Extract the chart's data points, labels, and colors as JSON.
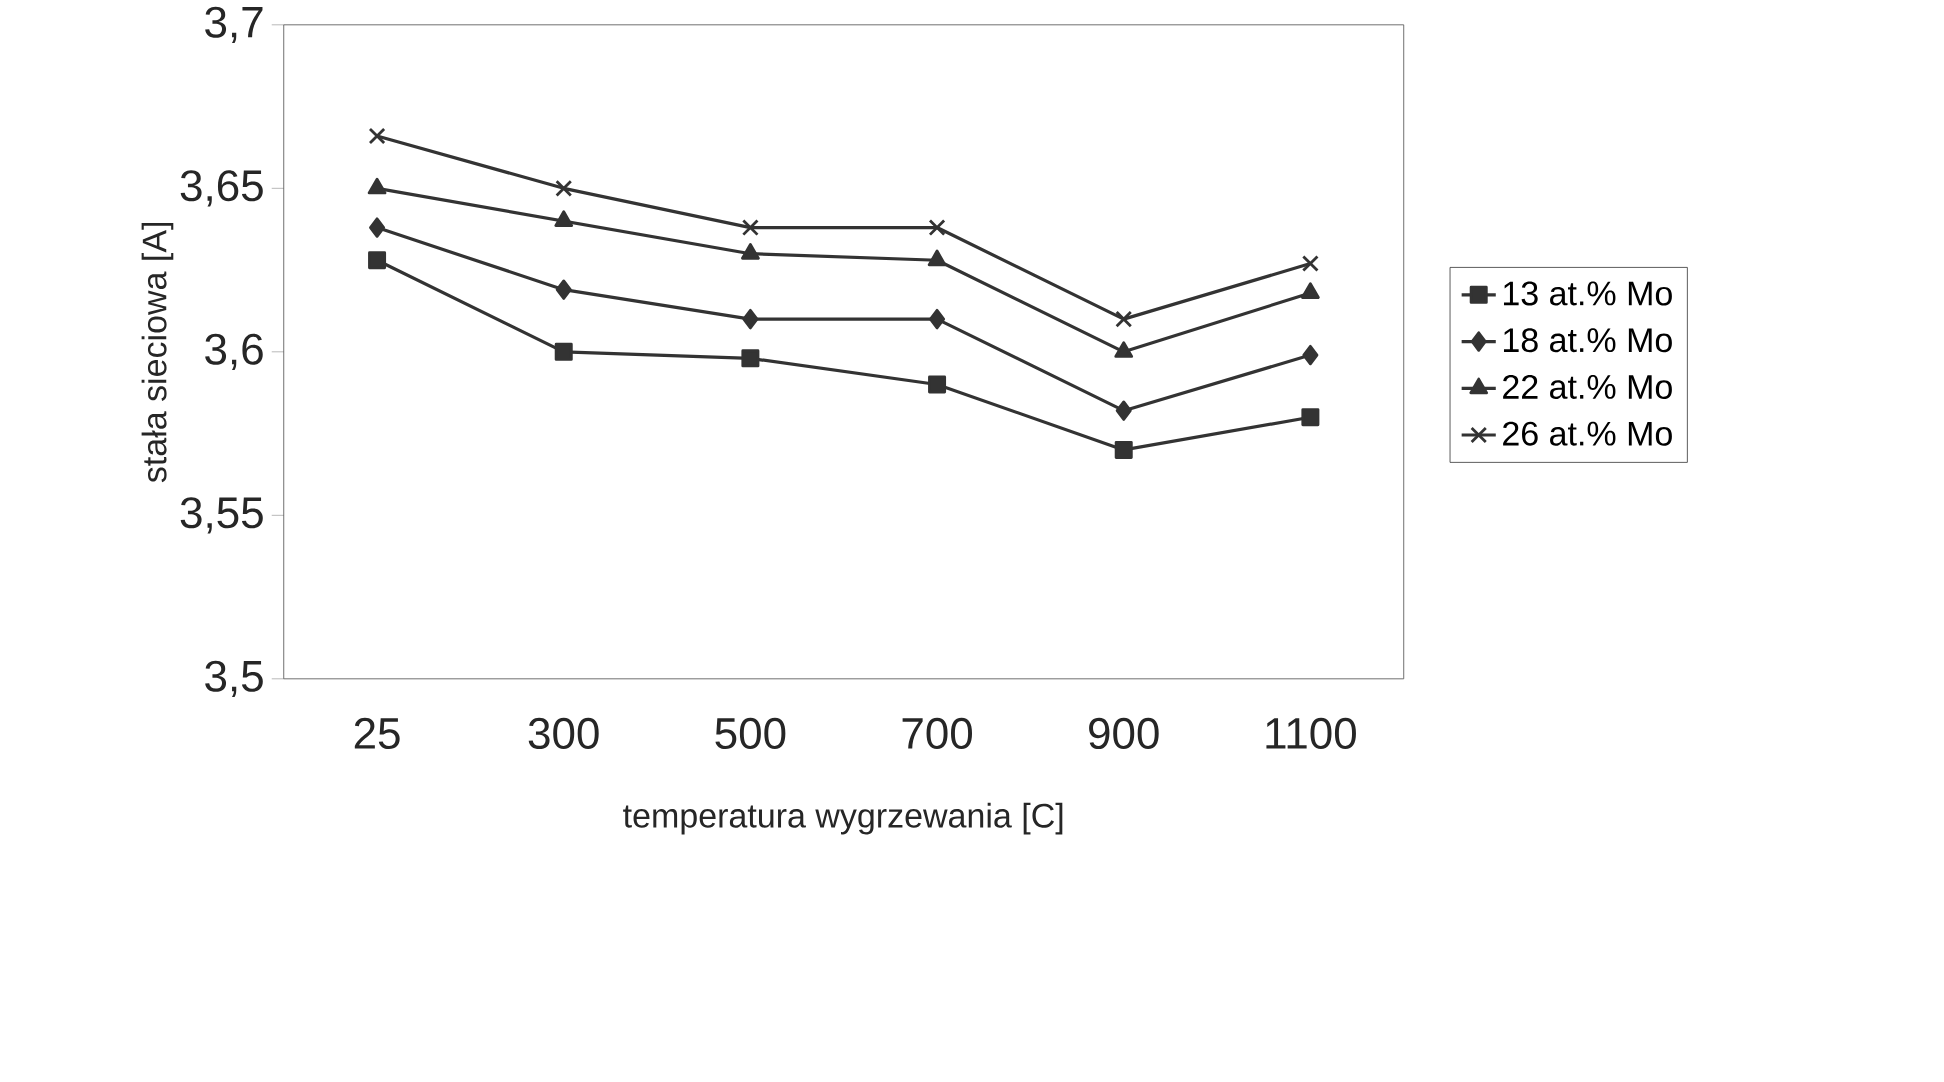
{
  "chart_data": {
    "type": "line",
    "xlabel": "temperatura wygrzewania [C]",
    "ylabel": "stała sieciowa [A]",
    "categories": [
      "25",
      "300",
      "500",
      "700",
      "900",
      "1100"
    ],
    "ylim": [
      3.5,
      3.7
    ],
    "yticks": [
      {
        "value": 3.5,
        "label": "3,5"
      },
      {
        "value": 3.55,
        "label": "3,55"
      },
      {
        "value": 3.6,
        "label": "3,6"
      },
      {
        "value": 3.65,
        "label": "3,65"
      },
      {
        "value": 3.7,
        "label": "3,7"
      }
    ],
    "grid": false,
    "legend": "right",
    "line_style": "solid",
    "series": [
      {
        "name": "13 at.% Mo",
        "color": "#333333",
        "marker": "square",
        "values": [
          3.628,
          3.6,
          3.598,
          3.59,
          3.57,
          3.58
        ]
      },
      {
        "name": "18 at.% Mo",
        "color": "#333333",
        "marker": "diamond",
        "values": [
          3.638,
          3.619,
          3.61,
          3.61,
          3.582,
          3.599
        ]
      },
      {
        "name": "22 at.% Mo",
        "color": "#333333",
        "marker": "triangle",
        "values": [
          3.65,
          3.64,
          3.63,
          3.628,
          3.6,
          3.618
        ]
      },
      {
        "name": "26 at.% Mo",
        "color": "#333333",
        "marker": "cross",
        "values": [
          3.666,
          3.65,
          3.638,
          3.638,
          3.61,
          3.627
        ]
      }
    ]
  }
}
